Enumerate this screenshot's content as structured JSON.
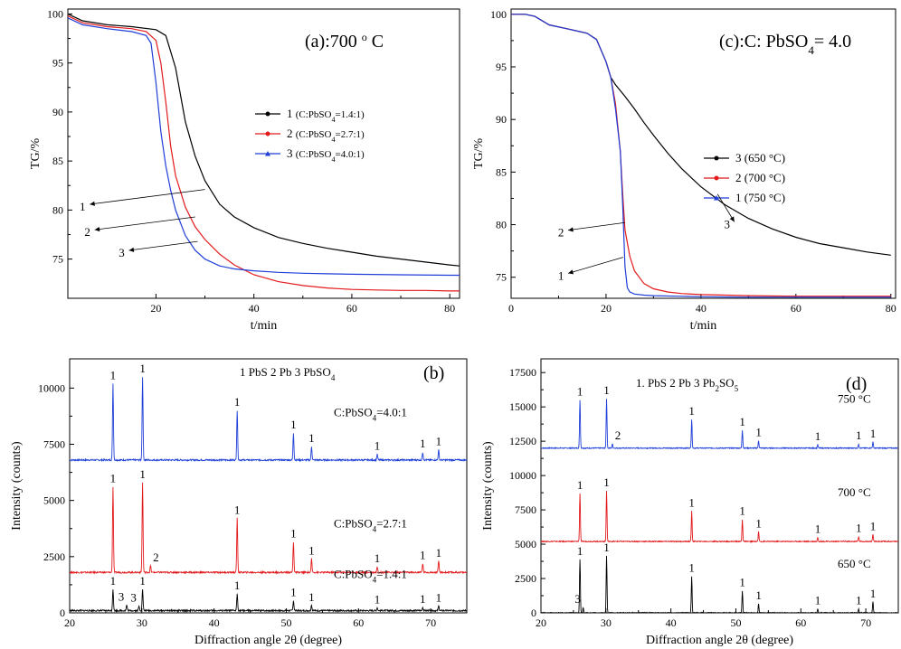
{
  "chart_data": [
    {
      "id": "a",
      "type": "line",
      "title": "(a):700 ° C",
      "xlabel": "t/min",
      "ylabel": "TG/%",
      "xlim": [
        2,
        82
      ],
      "ylim": [
        71,
        100.5
      ],
      "xticks": [
        20,
        40,
        60,
        80
      ],
      "yticks": [
        75,
        80,
        85,
        90,
        95,
        100
      ],
      "legend": "middle-right",
      "series": [
        {
          "name": "1 (C:PbSO4=1.4:1)",
          "color": "#000000",
          "x": [
            2,
            5,
            10,
            15,
            20,
            22,
            24,
            26,
            28,
            30,
            33,
            36,
            40,
            45,
            50,
            55,
            60,
            65,
            70,
            75,
            80,
            82
          ],
          "y": [
            100,
            99.3,
            98.9,
            98.7,
            98.4,
            97.8,
            94.5,
            89,
            85.5,
            83,
            80.6,
            79.3,
            78.2,
            77.2,
            76.6,
            76.1,
            75.7,
            75.3,
            75.0,
            74.7,
            74.4,
            74.3
          ]
        },
        {
          "name": "2 (C:PbSO4=2.7:1)",
          "color": "#e31a1c",
          "x": [
            2,
            5,
            10,
            15,
            18,
            20,
            21,
            22,
            23,
            24,
            26,
            28,
            30,
            33,
            36,
            40,
            45,
            50,
            55,
            60,
            65,
            70,
            75,
            80,
            82
          ],
          "y": [
            99.8,
            99.1,
            98.7,
            98.5,
            98.2,
            97.3,
            95,
            91,
            86.5,
            83.5,
            80.3,
            78.3,
            77,
            75.5,
            74.4,
            73.4,
            72.7,
            72.3,
            72.05,
            71.9,
            71.85,
            71.8,
            71.8,
            71.75,
            71.75
          ]
        },
        {
          "name": "3 (C:PbSO4=4.0:1)",
          "color": "#1f3fd8",
          "x": [
            2,
            5,
            10,
            15,
            18,
            19,
            20,
            21,
            22,
            23,
            24,
            26,
            28,
            30,
            33,
            36,
            40,
            45,
            50,
            55,
            60,
            70,
            80,
            82
          ],
          "y": [
            99.6,
            98.9,
            98.5,
            98.2,
            97.8,
            97,
            93,
            88,
            84.5,
            82,
            80,
            77.4,
            75.9,
            75.0,
            74.3,
            74.0,
            73.8,
            73.65,
            73.55,
            73.5,
            73.45,
            73.4,
            73.35,
            73.35
          ]
        }
      ],
      "annotations": [
        {
          "text": "1",
          "x": 5,
          "y": 80.4
        },
        {
          "text": "2",
          "x": 6,
          "y": 77.8
        },
        {
          "text": "3",
          "x": 13,
          "y": 75.7
        }
      ]
    },
    {
      "id": "c",
      "type": "line",
      "title": "(c):C: PbSO4= 4.0",
      "xlabel": "t/min",
      "ylabel": "TG/%",
      "xlim": [
        0,
        81
      ],
      "ylim": [
        73,
        100.5
      ],
      "xticks": [
        0,
        20,
        40,
        60,
        80
      ],
      "yticks": [
        75,
        80,
        85,
        90,
        95,
        100
      ],
      "legend": "middle-right",
      "series": [
        {
          "name": "3 (650 °C)",
          "color": "#000000",
          "x": [
            0,
            3,
            5,
            8,
            12,
            16,
            18,
            20,
            21,
            22,
            24,
            26,
            28,
            30,
            33,
            36,
            40,
            45,
            50,
            55,
            60,
            65,
            70,
            75,
            80
          ],
          "y": [
            100,
            100,
            99.8,
            99,
            98.6,
            98.2,
            97.6,
            95.5,
            94,
            93.3,
            92.2,
            91,
            89.7,
            88.5,
            86.8,
            85.3,
            83.6,
            81.9,
            80.6,
            79.6,
            78.8,
            78.2,
            77.8,
            77.4,
            77.1
          ]
        },
        {
          "name": "2 (700 °C)",
          "color": "#e31a1c",
          "x": [
            0,
            3,
            5,
            8,
            12,
            16,
            18,
            20,
            21,
            22,
            23,
            23.5,
            24,
            25,
            26,
            28,
            30,
            33,
            36,
            40,
            45,
            50,
            60,
            70,
            80
          ],
          "y": [
            100,
            100,
            99.8,
            99,
            98.6,
            98.2,
            97.6,
            95.5,
            94,
            91.5,
            87,
            83,
            79.5,
            77,
            75.6,
            74.4,
            73.9,
            73.6,
            73.45,
            73.35,
            73.3,
            73.25,
            73.2,
            73.2,
            73.2
          ]
        },
        {
          "name": "1 (750 °C)",
          "color": "#1f3fd8",
          "x": [
            0,
            3,
            5,
            8,
            12,
            16,
            18,
            20,
            21,
            22,
            23,
            23.5,
            24,
            24.5,
            25,
            26,
            28,
            30,
            35,
            40,
            50,
            60,
            70,
            80
          ],
          "y": [
            100,
            100,
            99.8,
            99,
            98.6,
            98.2,
            97.6,
            95.5,
            94,
            91,
            87,
            82,
            76,
            74,
            73.6,
            73.4,
            73.3,
            73.25,
            73.2,
            73.15,
            73.1,
            73.1,
            73.1,
            73.1
          ]
        }
      ],
      "annotations": [
        {
          "text": "2",
          "x": 10.5,
          "y": 79.3
        },
        {
          "text": "1",
          "x": 10.5,
          "y": 75.2
        },
        {
          "text": "3",
          "x": 45.5,
          "y": 80.1
        }
      ]
    },
    {
      "id": "b",
      "type": "line",
      "title": "(b)",
      "xlabel": "Diffraction angle 2θ (degree)",
      "ylabel": "Intensity (counts)",
      "xlim": [
        20,
        75
      ],
      "ylim": [
        0,
        11300
      ],
      "xticks": [
        20,
        30,
        40,
        50,
        60,
        70
      ],
      "yticks": [
        0,
        2500,
        5000,
        7500,
        10000
      ],
      "legend_text": "1 PbS  2  Pb    3 PbSO4",
      "series": [
        {
          "name": "C:PbSO4=4.0:1",
          "color": "#1f3fd8",
          "baseline": 6800,
          "peaks": [
            [
              26.0,
              3400,
              "1"
            ],
            [
              30.1,
              3700,
              "1"
            ],
            [
              43.2,
              2200,
              "1"
            ],
            [
              51.0,
              1200,
              "1"
            ],
            [
              53.5,
              600,
              "1"
            ],
            [
              62.6,
              250,
              "1"
            ],
            [
              68.9,
              350,
              "1"
            ],
            [
              71.1,
              450,
              "1"
            ]
          ]
        },
        {
          "name": "C:PbSO4=2.7:1",
          "color": "#e31a1c",
          "baseline": 1800,
          "peaks": [
            [
              26.0,
              3800,
              "1"
            ],
            [
              30.1,
              4000,
              "1"
            ],
            [
              31.2,
              300,
              "2"
            ],
            [
              43.2,
              2400,
              "1"
            ],
            [
              51.0,
              1350,
              "1"
            ],
            [
              53.5,
              600,
              "1"
            ],
            [
              62.6,
              250,
              "1"
            ],
            [
              68.9,
              400,
              "1"
            ],
            [
              71.1,
              500,
              "1"
            ]
          ]
        },
        {
          "name": "C:PbSO4=1.4:1",
          "color": "#000000",
          "baseline": 100,
          "peaks": [
            [
              26.0,
              950,
              "1"
            ],
            [
              27.9,
              250,
              "3"
            ],
            [
              29.6,
              200,
              "3"
            ],
            [
              30.1,
              950,
              "1"
            ],
            [
              43.2,
              750,
              "1"
            ],
            [
              51.0,
              450,
              "1"
            ],
            [
              53.5,
              230,
              "1"
            ],
            [
              62.6,
              130,
              "1"
            ],
            [
              68.9,
              150,
              "1"
            ],
            [
              71.1,
              200,
              "1"
            ]
          ]
        }
      ]
    },
    {
      "id": "d",
      "type": "line",
      "title": "(d)",
      "xlabel": "Diffraction angle 2θ (degree)",
      "ylabel": "Intensity (counts)",
      "xlim": [
        20,
        75
      ],
      "ylim": [
        0,
        18500
      ],
      "xticks": [
        20,
        30,
        40,
        50,
        60,
        70
      ],
      "yticks": [
        0,
        2500,
        5000,
        7500,
        10000,
        12500,
        15000,
        17500
      ],
      "legend_text": "1. PbS    2 Pb    3 Pb2SO5",
      "series": [
        {
          "name": "750 °C",
          "color": "#1f3fd8",
          "baseline": 12000,
          "peaks": [
            [
              26.0,
              3500,
              "1"
            ],
            [
              30.1,
              3600,
              "1"
            ],
            [
              31.0,
              300,
              "2"
            ],
            [
              43.2,
              2100,
              "1"
            ],
            [
              51.0,
              1300,
              "1"
            ],
            [
              53.5,
              550,
              "1"
            ],
            [
              62.6,
              250,
              "1"
            ],
            [
              68.9,
              300,
              "1"
            ],
            [
              71.1,
              450,
              "1"
            ]
          ]
        },
        {
          "name": "700 °C",
          "color": "#e31a1c",
          "baseline": 5200,
          "peaks": [
            [
              26.0,
              3500,
              "1"
            ],
            [
              30.1,
              3700,
              "1"
            ],
            [
              43.2,
              2200,
              "1"
            ],
            [
              51.0,
              1600,
              "1"
            ],
            [
              53.5,
              700,
              "1"
            ],
            [
              62.6,
              300,
              "1"
            ],
            [
              68.9,
              350,
              "1"
            ],
            [
              71.1,
              500,
              "1"
            ]
          ]
        },
        {
          "name": "650 °C",
          "color": "#000000",
          "baseline": 0,
          "peaks": [
            [
              26.0,
              3900,
              "1"
            ],
            [
              26.5,
              400,
              "3"
            ],
            [
              30.1,
              4150,
              "1"
            ],
            [
              43.2,
              2650,
              "1"
            ],
            [
              51.0,
              1600,
              "1"
            ],
            [
              53.5,
              650,
              "1"
            ],
            [
              62.6,
              300,
              "1"
            ],
            [
              68.9,
              300,
              "1"
            ],
            [
              71.1,
              800,
              "1"
            ]
          ]
        }
      ]
    }
  ]
}
